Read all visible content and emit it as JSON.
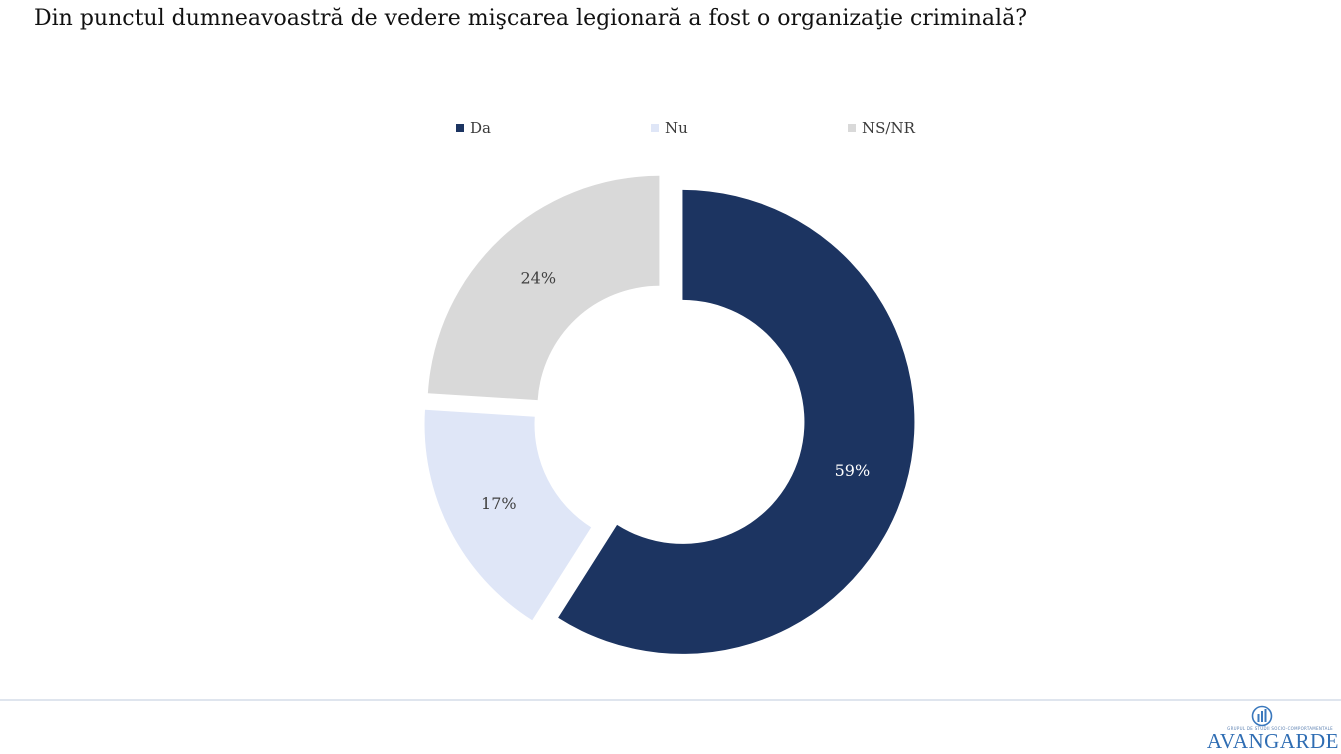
{
  "chart_data": {
    "type": "pie",
    "donut": true,
    "title": "Din punctul dumneavoastră de vedere mişcarea legionară a fost o organizaţie criminală?",
    "legend_position": "top",
    "categories": [
      "Da",
      "Nu",
      "NS/NR"
    ],
    "values": [
      59,
      17,
      24
    ],
    "data_labels": [
      "59%",
      "17%",
      "24%"
    ],
    "colors": [
      "#1c3461",
      "#dfe6f7",
      "#d9d9d9"
    ],
    "label_colors": [
      "#ffffff",
      "#404040",
      "#404040"
    ],
    "exploded": true,
    "start_angle_deg": 0,
    "direction": "clockwise"
  },
  "logo": {
    "tagline": "GRUPUL DE STUDII SOCIO-COMPORTAMENTALE",
    "name": "AVANGARDE",
    "icon": "avangarde-logo-icon"
  }
}
